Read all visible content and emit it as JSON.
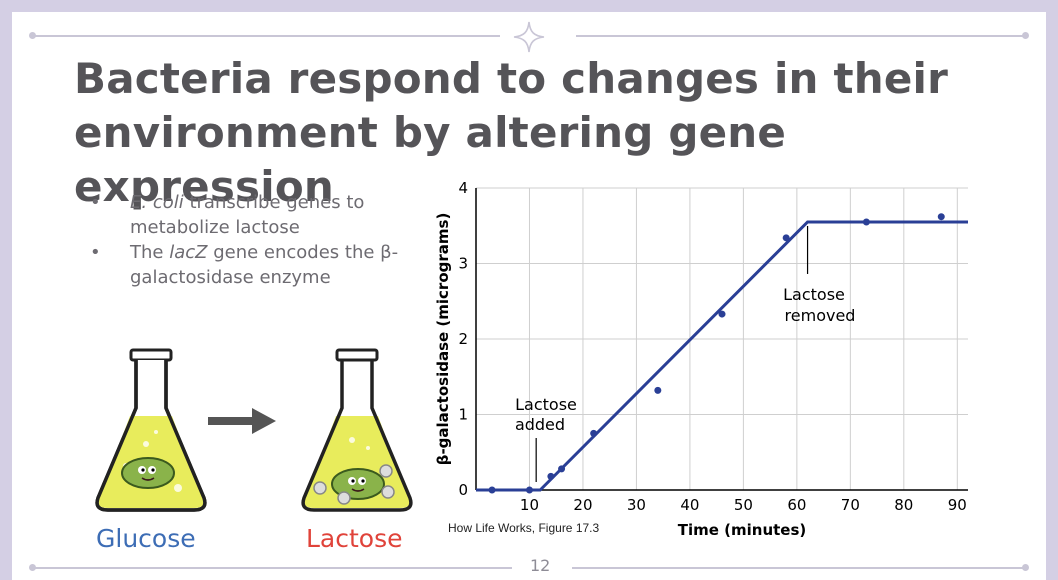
{
  "slide": {
    "title_line1": "Bacteria respond to changes in their",
    "title_line2": "environment by altering gene expression",
    "page_number": "12",
    "colors": {
      "background": "#d4cfe4",
      "title": "#555458",
      "glucose": "#3d6db5",
      "lactose": "#e0433a",
      "line": "#2a3f96"
    }
  },
  "bullets": [
    {
      "italic": "E. coli",
      "text": " transcribe genes to metabolize lactose"
    },
    {
      "pre": "The ",
      "italic": "lacZ",
      "text": " gene encodes the β-galactosidase enzyme"
    }
  ],
  "flasks": {
    "left_label": "Glucose",
    "right_label": "Lactose",
    "icons": [
      "erlenmeyer-flask-icon",
      "bacterium-icon",
      "right-arrow-icon"
    ]
  },
  "chart_data": {
    "type": "line",
    "xlabel": "Time (minutes)",
    "ylabel": "β-galactosidase (micrograms)",
    "xlim": [
      0,
      92
    ],
    "ylim": [
      0,
      4
    ],
    "xticks": [
      10,
      20,
      30,
      40,
      50,
      60,
      70,
      80,
      90
    ],
    "yticks": [
      0,
      1,
      2,
      3,
      4
    ],
    "grid": true,
    "series": [
      {
        "kind": "fit-line",
        "x": [
          0,
          12,
          62,
          92
        ],
        "y": [
          0,
          0,
          3.55,
          3.55
        ]
      },
      {
        "kind": "points",
        "x": [
          3,
          10,
          14,
          16,
          22,
          34,
          46,
          58,
          73,
          87
        ],
        "y": [
          0,
          0,
          0.18,
          0.28,
          0.75,
          1.32,
          2.33,
          3.34,
          3.55,
          3.62
        ]
      }
    ],
    "annotations": [
      {
        "text_line1": "Lactose",
        "text_line2": "added",
        "x": 12,
        "y": 0
      },
      {
        "text_line1": "Lactose",
        "text_line2": "removed",
        "x": 62,
        "y": 3.55
      }
    ],
    "source": "How Life Works, Figure 17.3"
  }
}
